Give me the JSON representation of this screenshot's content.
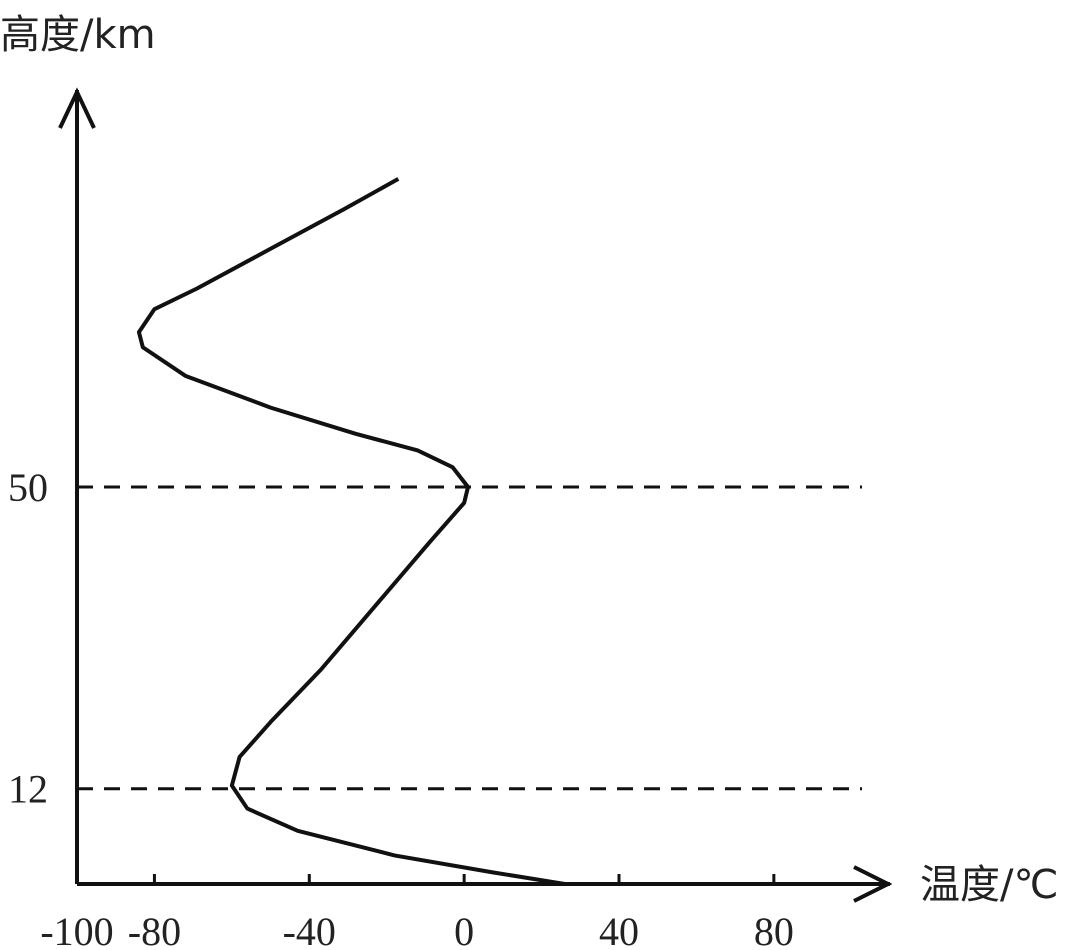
{
  "chart_data": {
    "type": "line",
    "y_label": "高度/km",
    "x_label": "温度/℃",
    "xlim": [
      -100,
      110
    ],
    "ylim": [
      0,
      100
    ],
    "xticks": [
      -100,
      -80,
      -40,
      0,
      40,
      80
    ],
    "yticks": [
      12,
      50
    ],
    "series": [
      {
        "color": "#111111",
        "x": [
          26,
          7,
          -18,
          -43,
          -56,
          -60,
          -58,
          -50,
          -37,
          -23,
          -9,
          0,
          1,
          -3,
          -12,
          -28,
          -50,
          -72,
          -83,
          -84,
          -80,
          -69,
          -50,
          -31,
          -17
        ],
        "values": [
          0,
          1.5,
          3.6,
          6.7,
          9.5,
          12.4,
          16,
          20.4,
          27,
          35,
          43,
          48,
          50,
          52.5,
          54.6,
          56.7,
          60,
          64,
          67.6,
          69.5,
          72.4,
          75,
          80,
          85,
          88.8
        ]
      }
    ]
  }
}
